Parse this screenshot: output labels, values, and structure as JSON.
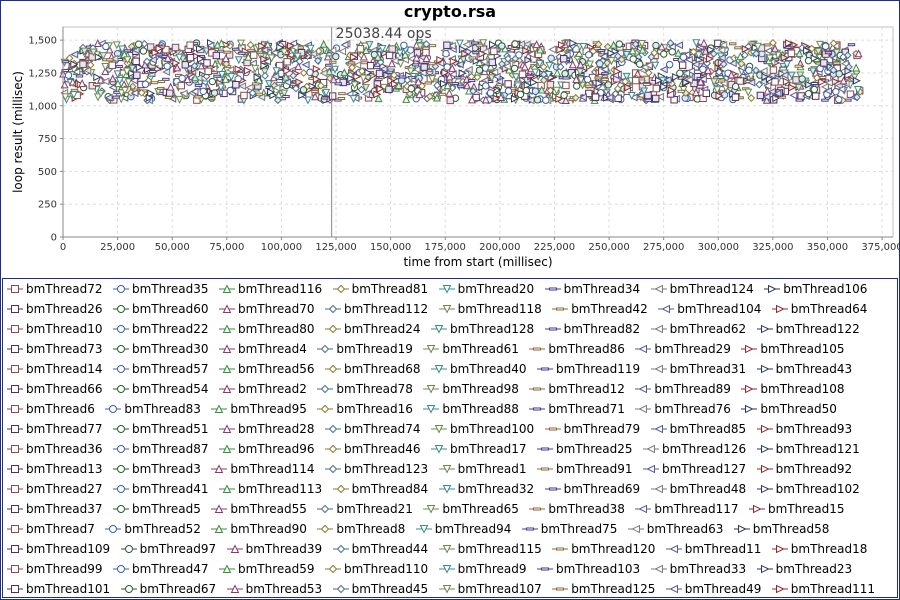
{
  "chart_data": {
    "type": "scatter",
    "title": "crypto.rsa",
    "xlabel": "time from start (millisec)",
    "ylabel": "loop result (millisec)",
    "xlim": [
      0,
      380000
    ],
    "ylim": [
      0,
      1600
    ],
    "xticks": [
      "0",
      "25,000",
      "50,000",
      "75,000",
      "100,000",
      "125,000",
      "150,000",
      "175,000",
      "200,000",
      "225,000",
      "250,000",
      "275,000",
      "300,000",
      "325,000",
      "350,000",
      "375,000"
    ],
    "xtick_values": [
      0,
      25000,
      50000,
      75000,
      100000,
      125000,
      150000,
      175000,
      200000,
      225000,
      250000,
      275000,
      300000,
      325000,
      350000,
      375000
    ],
    "yticks": [
      "0",
      "250",
      "500",
      "750",
      "1,000",
      "1,250",
      "1,500"
    ],
    "ytick_values": [
      0,
      250,
      500,
      750,
      1000,
      1250,
      1500
    ],
    "grid": true,
    "marker_line": {
      "x": 123000,
      "label": "25038.44 ops"
    },
    "data_x_range": [
      0,
      365000
    ],
    "data_y_band": [
      1000,
      1500
    ],
    "series_names": [
      "bmThread72",
      "bmThread35",
      "bmThread116",
      "bmThread81",
      "bmThread20",
      "bmThread34",
      "bmThread124",
      "bmThread106",
      "bmThread26",
      "bmThread60",
      "bmThread70",
      "bmThread112",
      "bmThread118",
      "bmThread42",
      "bmThread104",
      "bmThread64",
      "bmThread10",
      "bmThread22",
      "bmThread80",
      "bmThread24",
      "bmThread128",
      "bmThread82",
      "bmThread62",
      "bmThread122",
      "bmThread73",
      "bmThread30",
      "bmThread4",
      "bmThread19",
      "bmThread61",
      "bmThread86",
      "bmThread29",
      "bmThread105",
      "bmThread14",
      "bmThread57",
      "bmThread56",
      "bmThread68",
      "bmThread40",
      "bmThread119",
      "bmThread31",
      "bmThread43",
      "bmThread66",
      "bmThread54",
      "bmThread2",
      "bmThread78",
      "bmThread98",
      "bmThread12",
      "bmThread89",
      "bmThread108",
      "bmThread6",
      "bmThread83",
      "bmThread95",
      "bmThread16",
      "bmThread88",
      "bmThread71",
      "bmThread76",
      "bmThread50",
      "bmThread77",
      "bmThread51",
      "bmThread28",
      "bmThread74",
      "bmThread100",
      "bmThread79",
      "bmThread85",
      "bmThread93",
      "bmThread36",
      "bmThread87",
      "bmThread96",
      "bmThread46",
      "bmThread17",
      "bmThread25",
      "bmThread126",
      "bmThread121",
      "bmThread13",
      "bmThread3",
      "bmThread114",
      "bmThread123",
      "bmThread1",
      "bmThread91",
      "bmThread127",
      "bmThread92",
      "bmThread27",
      "bmThread41",
      "bmThread113",
      "bmThread84",
      "bmThread32",
      "bmThread69",
      "bmThread48",
      "bmThread102",
      "bmThread37",
      "bmThread5",
      "bmThread55",
      "bmThread21",
      "bmThread65",
      "bmThread38",
      "bmThread117",
      "bmThread15",
      "bmThread7",
      "bmThread52",
      "bmThread90",
      "bmThread8",
      "bmThread94",
      "bmThread75",
      "bmThread63",
      "bmThread58",
      "bmThread109",
      "bmThread97",
      "bmThread39",
      "bmThread44",
      "bmThread115",
      "bmThread120",
      "bmThread11",
      "bmThread18",
      "bmThread99",
      "bmThread47",
      "bmThread59",
      "bmThread110",
      "bmThread9",
      "bmThread103",
      "bmThread33",
      "bmThread23",
      "bmThread101",
      "bmThread67",
      "bmThread53",
      "bmThread45",
      "bmThread107",
      "bmThread125",
      "bmThread49",
      "bmThread111"
    ],
    "legend_rows": [
      [
        0,
        1,
        2,
        3,
        4,
        5,
        6,
        7
      ],
      [
        8,
        9,
        10,
        11,
        12,
        13,
        14,
        15
      ],
      [
        16,
        17,
        18,
        19,
        20,
        21,
        22,
        23
      ],
      [
        24,
        25,
        26,
        27,
        28,
        29,
        30,
        31
      ],
      [
        32,
        33,
        34,
        35,
        36,
        37,
        38,
        39
      ],
      [
        40,
        41,
        42,
        43,
        44,
        45,
        46,
        47
      ],
      [
        48,
        49,
        50,
        51,
        52,
        53,
        54,
        55
      ],
      [
        56,
        57,
        58,
        59,
        60,
        61,
        62,
        63
      ],
      [
        64,
        65,
        66,
        67,
        68,
        69,
        70,
        71
      ],
      [
        72,
        73,
        74,
        75,
        76,
        77,
        78,
        79
      ],
      [
        80,
        81,
        82,
        83,
        84,
        85,
        86,
        87
      ],
      [
        88,
        89,
        90,
        91,
        92,
        93,
        94,
        95
      ],
      [
        96,
        97,
        98,
        99,
        100,
        101,
        102,
        103
      ],
      [
        104,
        105,
        106,
        107,
        108,
        109,
        110,
        111
      ],
      [
        112,
        113,
        114,
        115,
        116,
        117,
        118,
        119
      ],
      [
        120,
        121,
        122,
        123,
        124,
        125,
        126,
        127
      ]
    ],
    "legend_placement": "bottom",
    "palette": [
      "#8c4a4a",
      "#3a5fa0",
      "#3d8c3d",
      "#8c7a2a",
      "#3a8c8c",
      "#4a3a8c",
      "#7a7a7a",
      "#2a3a5a",
      "#5a2a5a",
      "#2a5a2a",
      "#8c3a6a",
      "#4a6a8c",
      "#6a8c4a",
      "#8c6a3a",
      "#5a5a8c",
      "#8c2a2a"
    ],
    "marker_shapes": [
      "square",
      "circle",
      "triangle-up",
      "diamond",
      "triangle-down",
      "hline",
      "triangle-left",
      "triangle-right"
    ]
  }
}
